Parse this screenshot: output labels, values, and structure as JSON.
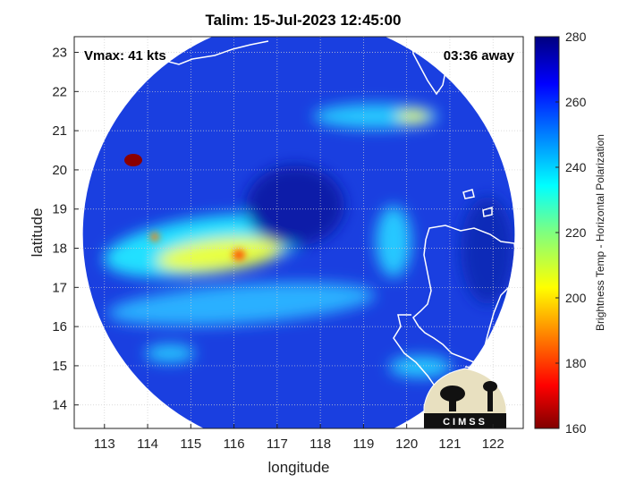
{
  "title": "Talim: 15-Jul-2023 12:45:00",
  "annotations": {
    "vmax": "Vmax: 41 kts",
    "away": "03:36 away"
  },
  "axes": {
    "xlabel": "longitude",
    "ylabel": "latitude",
    "xlim": [
      112.3,
      122.7
    ],
    "ylim": [
      13.4,
      23.4
    ],
    "xticks": [
      113,
      114,
      115,
      116,
      117,
      118,
      119,
      120,
      121,
      122
    ],
    "yticks": [
      14,
      15,
      16,
      17,
      18,
      19,
      20,
      21,
      22,
      23
    ],
    "grid": true
  },
  "colorbar": {
    "label": "Brightness Temp - Horizontal Polarization",
    "min": 160,
    "max": 280,
    "ticks": [
      160,
      180,
      200,
      220,
      240,
      260,
      280
    ],
    "colormap": "jet"
  },
  "swath": {
    "center_lon": 117.5,
    "center_lat": 18.35,
    "radius_deg": 5.0,
    "base_color": "#1a3fe0"
  },
  "logo": {
    "text": "CIMSS"
  },
  "colors": {
    "coastline": "#ffffff",
    "background": "#ffffff",
    "hot_spot": "#8b0000"
  }
}
